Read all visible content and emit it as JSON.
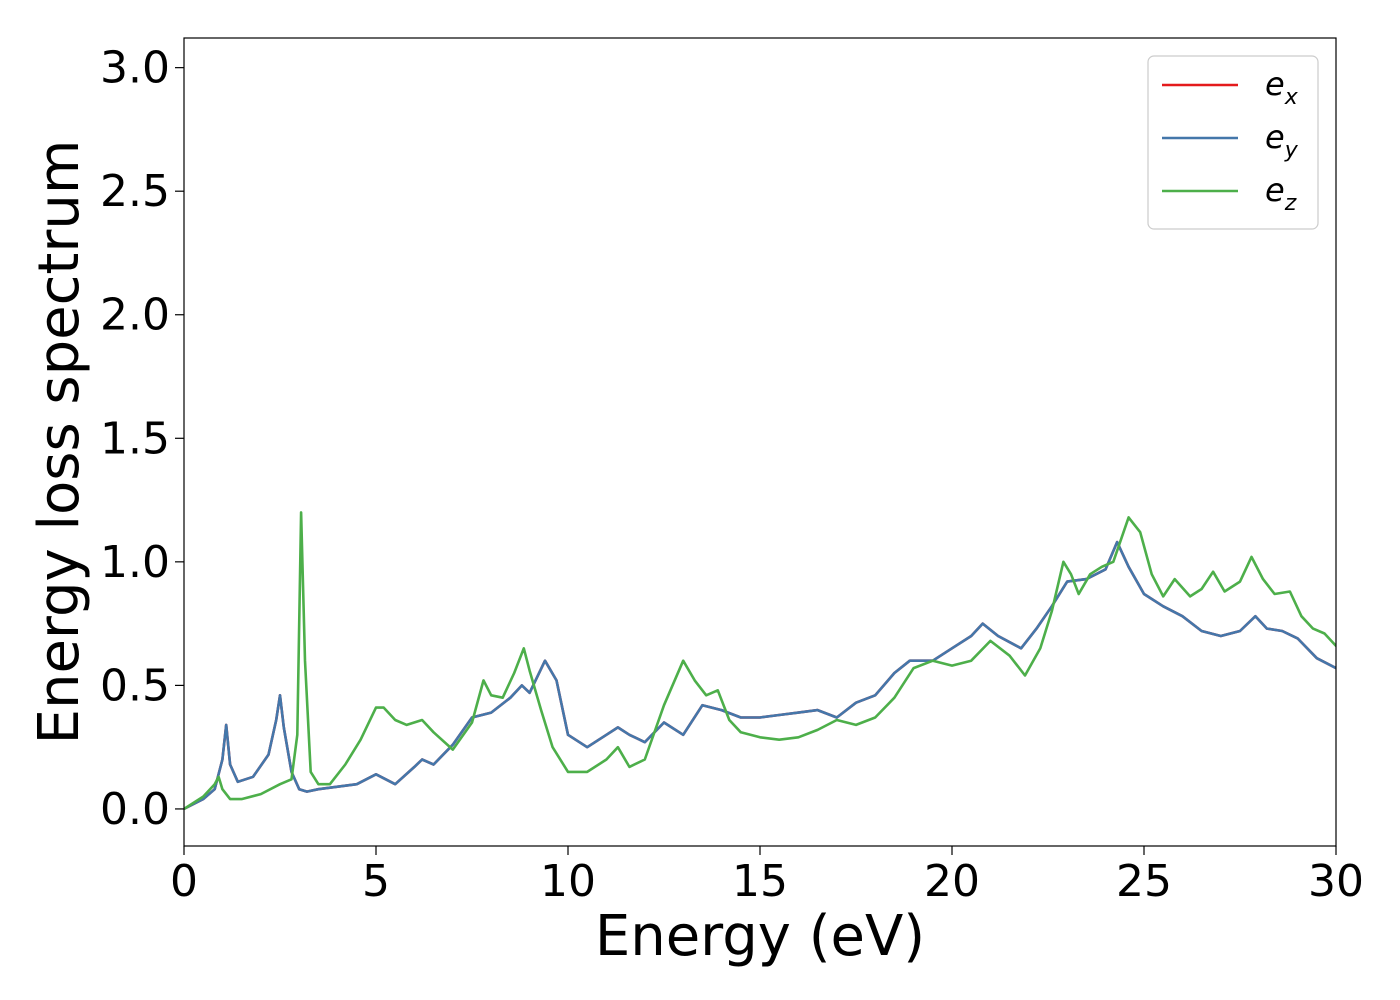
{
  "chart_data": {
    "type": "line",
    "xlabel": "Energy (eV)",
    "ylabel": "Energy loss spectrum",
    "xlim": [
      0,
      30
    ],
    "ylim": [
      -0.15,
      3.12
    ],
    "xticks": [
      "0",
      "5",
      "10",
      "15",
      "20",
      "25",
      "30"
    ],
    "yticks": [
      "0.0",
      "0.5",
      "1.0",
      "1.5",
      "2.0",
      "2.5",
      "3.0"
    ],
    "grid": false,
    "legend_position": "top-right",
    "series": [
      {
        "name": "e",
        "subscript": "x",
        "color": "#e41a1c",
        "x": [
          0,
          0.5,
          0.8,
          1.0,
          1.1,
          1.2,
          1.4,
          1.8,
          2.2,
          2.4,
          2.5,
          2.6,
          2.8,
          3.0,
          3.2,
          3.5,
          4.0,
          4.5,
          5.0,
          5.5,
          6.0,
          6.2,
          6.5,
          7.0,
          7.5,
          8.0,
          8.5,
          8.8,
          9.0,
          9.4,
          9.7,
          10.0,
          10.5,
          11.0,
          11.3,
          11.6,
          12.0,
          12.5,
          13.0,
          13.5,
          14.0,
          14.5,
          15.0,
          15.5,
          16.0,
          16.5,
          17.0,
          17.5,
          18.0,
          18.5,
          18.9,
          19.5,
          20.0,
          20.5,
          20.8,
          21.2,
          21.8,
          22.2,
          22.6,
          23.0,
          23.5,
          24.0,
          24.3,
          24.6,
          25.0,
          25.5,
          26.0,
          26.5,
          27.0,
          27.5,
          27.9,
          28.2,
          28.6,
          29.0,
          29.5,
          30.0
        ],
        "y": [
          0.0,
          0.04,
          0.08,
          0.2,
          0.34,
          0.18,
          0.11,
          0.13,
          0.22,
          0.36,
          0.46,
          0.33,
          0.15,
          0.08,
          0.07,
          0.08,
          0.09,
          0.1,
          0.14,
          0.1,
          0.17,
          0.2,
          0.18,
          0.26,
          0.37,
          0.39,
          0.45,
          0.5,
          0.47,
          0.6,
          0.52,
          0.3,
          0.25,
          0.3,
          0.33,
          0.3,
          0.27,
          0.35,
          0.3,
          0.42,
          0.4,
          0.37,
          0.37,
          0.38,
          0.39,
          0.4,
          0.37,
          0.43,
          0.46,
          0.55,
          0.6,
          0.6,
          0.65,
          0.7,
          0.75,
          0.7,
          0.65,
          0.73,
          0.82,
          0.92,
          0.93,
          0.97,
          1.08,
          0.98,
          0.87,
          0.82,
          0.78,
          0.72,
          0.7,
          0.72,
          0.78,
          0.73,
          0.72,
          0.69,
          0.61,
          0.57
        ]
      },
      {
        "name": "e",
        "subscript": "y",
        "color": "#4477aa",
        "x": [
          0,
          0.5,
          0.8,
          1.0,
          1.1,
          1.2,
          1.4,
          1.8,
          2.2,
          2.4,
          2.5,
          2.6,
          2.8,
          3.0,
          3.2,
          3.5,
          4.0,
          4.5,
          5.0,
          5.5,
          6.0,
          6.2,
          6.5,
          7.0,
          7.5,
          8.0,
          8.5,
          8.8,
          9.0,
          9.4,
          9.7,
          10.0,
          10.5,
          11.0,
          11.3,
          11.6,
          12.0,
          12.5,
          13.0,
          13.5,
          14.0,
          14.5,
          15.0,
          15.5,
          16.0,
          16.5,
          17.0,
          17.5,
          18.0,
          18.5,
          18.9,
          19.5,
          20.0,
          20.5,
          20.8,
          21.2,
          21.8,
          22.2,
          22.6,
          23.0,
          23.5,
          24.0,
          24.3,
          24.6,
          25.0,
          25.5,
          26.0,
          26.5,
          27.0,
          27.5,
          27.9,
          28.2,
          28.6,
          29.0,
          29.5,
          30.0
        ],
        "y": [
          0.0,
          0.04,
          0.08,
          0.2,
          0.34,
          0.18,
          0.11,
          0.13,
          0.22,
          0.36,
          0.46,
          0.33,
          0.15,
          0.08,
          0.07,
          0.08,
          0.09,
          0.1,
          0.14,
          0.1,
          0.17,
          0.2,
          0.18,
          0.26,
          0.37,
          0.39,
          0.45,
          0.5,
          0.47,
          0.6,
          0.52,
          0.3,
          0.25,
          0.3,
          0.33,
          0.3,
          0.27,
          0.35,
          0.3,
          0.42,
          0.4,
          0.37,
          0.37,
          0.38,
          0.39,
          0.4,
          0.37,
          0.43,
          0.46,
          0.55,
          0.6,
          0.6,
          0.65,
          0.7,
          0.75,
          0.7,
          0.65,
          0.73,
          0.82,
          0.92,
          0.93,
          0.97,
          1.08,
          0.98,
          0.87,
          0.82,
          0.78,
          0.72,
          0.7,
          0.72,
          0.78,
          0.73,
          0.72,
          0.69,
          0.61,
          0.57
        ]
      },
      {
        "name": "e",
        "subscript": "z",
        "color": "#4daf4a",
        "x": [
          0,
          0.5,
          0.8,
          0.9,
          1.0,
          1.2,
          1.5,
          2.0,
          2.5,
          2.8,
          2.95,
          3.05,
          3.15,
          3.3,
          3.5,
          3.8,
          4.2,
          4.6,
          5.0,
          5.2,
          5.5,
          5.8,
          6.2,
          6.5,
          7.0,
          7.5,
          7.8,
          8.0,
          8.3,
          8.6,
          8.85,
          9.0,
          9.3,
          9.6,
          10.0,
          10.5,
          11.0,
          11.3,
          11.6,
          12.0,
          12.5,
          13.0,
          13.3,
          13.6,
          13.9,
          14.2,
          14.5,
          15.0,
          15.5,
          16.0,
          16.5,
          17.0,
          17.5,
          18.0,
          18.5,
          19.0,
          19.5,
          20.0,
          20.5,
          21.0,
          21.5,
          21.9,
          22.3,
          22.6,
          22.9,
          23.1,
          23.3,
          23.6,
          23.9,
          24.2,
          24.6,
          24.9,
          25.2,
          25.5,
          25.8,
          26.2,
          26.5,
          26.8,
          27.1,
          27.5,
          27.8,
          28.1,
          28.4,
          28.8,
          29.1,
          29.4,
          29.7,
          30.0
        ],
        "y": [
          0.0,
          0.05,
          0.1,
          0.13,
          0.08,
          0.04,
          0.04,
          0.06,
          0.1,
          0.12,
          0.3,
          1.2,
          0.6,
          0.15,
          0.1,
          0.1,
          0.18,
          0.28,
          0.41,
          0.41,
          0.36,
          0.34,
          0.36,
          0.31,
          0.24,
          0.35,
          0.52,
          0.46,
          0.45,
          0.55,
          0.65,
          0.56,
          0.4,
          0.25,
          0.15,
          0.15,
          0.2,
          0.25,
          0.17,
          0.2,
          0.42,
          0.6,
          0.52,
          0.46,
          0.48,
          0.36,
          0.31,
          0.29,
          0.28,
          0.29,
          0.32,
          0.36,
          0.34,
          0.37,
          0.45,
          0.57,
          0.6,
          0.58,
          0.6,
          0.68,
          0.62,
          0.54,
          0.65,
          0.8,
          1.0,
          0.95,
          0.87,
          0.95,
          0.98,
          1.0,
          1.18,
          1.12,
          0.95,
          0.86,
          0.93,
          0.86,
          0.89,
          0.96,
          0.88,
          0.92,
          1.02,
          0.93,
          0.87,
          0.88,
          0.78,
          0.73,
          0.71,
          0.66
        ]
      }
    ]
  }
}
